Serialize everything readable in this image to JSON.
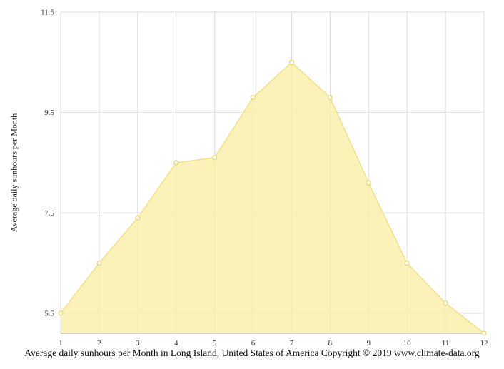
{
  "chart_data": {
    "type": "area",
    "categories": [
      1,
      2,
      3,
      4,
      5,
      6,
      7,
      8,
      9,
      10,
      11,
      12
    ],
    "values": [
      5.5,
      6.5,
      7.4,
      8.5,
      8.6,
      9.8,
      10.5,
      9.8,
      8.1,
      6.5,
      5.7,
      5.1
    ],
    "ylabel": "Average daily sunhours per Month",
    "xlabel": "",
    "yticks": [
      5.5,
      7.5,
      9.5,
      11.5
    ],
    "ylim": [
      5.1,
      11.5
    ],
    "grid": true,
    "legend": false,
    "caption": "Average daily sunhours per Month in Long Island, United States of America Copyright © 2019 www.climate-data.org",
    "colors": {
      "area_fill": "#FAEFA9",
      "area_opacity": 0.8,
      "line": "#F0E18A",
      "marker_fill": "#FFFEF5",
      "marker_stroke": "#E6D570",
      "grid": "#DCDCDC",
      "axis": "#9E9E9E",
      "text": "#333333"
    }
  }
}
